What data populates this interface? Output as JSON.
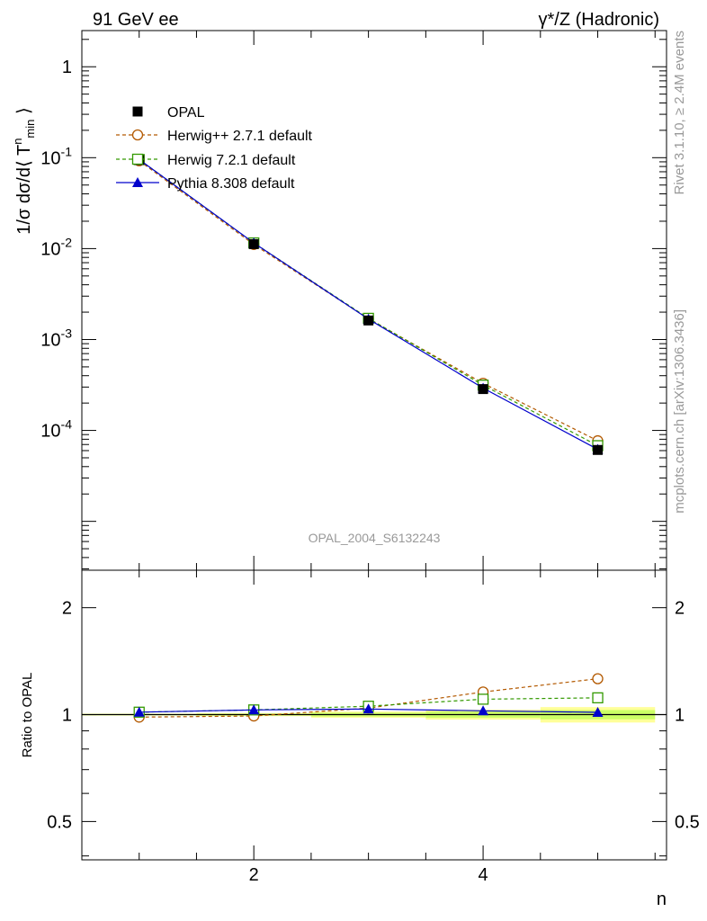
{
  "header": {
    "left": "91 GeV ee",
    "right": "γ*/Z (Hadronic)"
  },
  "side_text": {
    "rivet": "Rivet 3.1.10, ≥ 2.4M events",
    "mcplots": "mcplots.cern.ch [arXiv:1306.3436]"
  },
  "watermark": "OPAL_2004_S6132243",
  "colors": {
    "opal": "#000000",
    "herwigpp": "#b35900",
    "herwig7": "#339900",
    "pythia": "#0000cc",
    "band_inner": "#ccff66",
    "band_outer": "#ffff99"
  },
  "chart_data": [
    {
      "type": "line",
      "panel": "main",
      "ylabel": "1/σ dσ/d⟨ T^n_min ⟩",
      "yscale": "log",
      "xlim": [
        0.5,
        5.6
      ],
      "ylim": [
        2.9e-06,
        2.5
      ],
      "y_tick_labels": [
        "1",
        "10^-1",
        "10^-2",
        "10^-3",
        "10^-4"
      ],
      "x": [
        1,
        2,
        3,
        4,
        5
      ],
      "legend_position": "top-left",
      "series": [
        {
          "name": "OPAL",
          "key": "opal",
          "marker": "filled-square",
          "values": [
            0.094,
            0.0112,
            0.00162,
            0.000285,
            6.1e-05
          ]
        },
        {
          "name": "Herwig++ 2.7.1 default",
          "key": "herwigpp",
          "marker": "open-circle",
          "style": "dashed",
          "values": [
            0.0925,
            0.0111,
            0.00169,
            0.00033,
            7.7e-05
          ]
        },
        {
          "name": "Herwig 7.2.1 default",
          "key": "herwig7",
          "marker": "open-square",
          "style": "dashed",
          "values": [
            0.0955,
            0.01155,
            0.00171,
            0.000315,
            6.8e-05
          ]
        },
        {
          "name": "Pythia 8.308 default",
          "key": "pythia",
          "marker": "filled-triangle",
          "style": "solid",
          "values": [
            0.0955,
            0.01155,
            0.00168,
            0.000292,
            6.2e-05
          ]
        }
      ]
    },
    {
      "type": "line",
      "panel": "ratio",
      "ylabel": "Ratio to OPAL",
      "xlabel": "n",
      "xlim": [
        0.5,
        5.6
      ],
      "ylim": [
        0.39,
        2.55
      ],
      "y_tick_labels": [
        "0.5",
        "1",
        "2"
      ],
      "x_tick_labels": [
        "2",
        "4"
      ],
      "x": [
        1,
        2,
        3,
        4,
        5
      ],
      "reference": 1.0,
      "series": [
        {
          "name": "Herwig++ 2.7.1 default",
          "key": "herwigpp",
          "values": [
            0.984,
            0.991,
            1.043,
            1.158,
            1.262
          ]
        },
        {
          "name": "Herwig 7.2.1 default",
          "key": "herwig7",
          "values": [
            1.016,
            1.031,
            1.056,
            1.105,
            1.115
          ]
        },
        {
          "name": "Pythia 8.308 default",
          "key": "pythia",
          "values": [
            1.016,
            1.031,
            1.037,
            1.025,
            1.015
          ]
        }
      ],
      "uncertainty_band": {
        "x_edges": [
          0.5,
          1.5,
          2.5,
          3.5,
          4.5,
          5.5
        ],
        "inner": [
          0.004,
          0.006,
          0.012,
          0.02,
          0.03
        ],
        "outer": [
          0.006,
          0.01,
          0.02,
          0.032,
          0.05
        ]
      }
    }
  ]
}
